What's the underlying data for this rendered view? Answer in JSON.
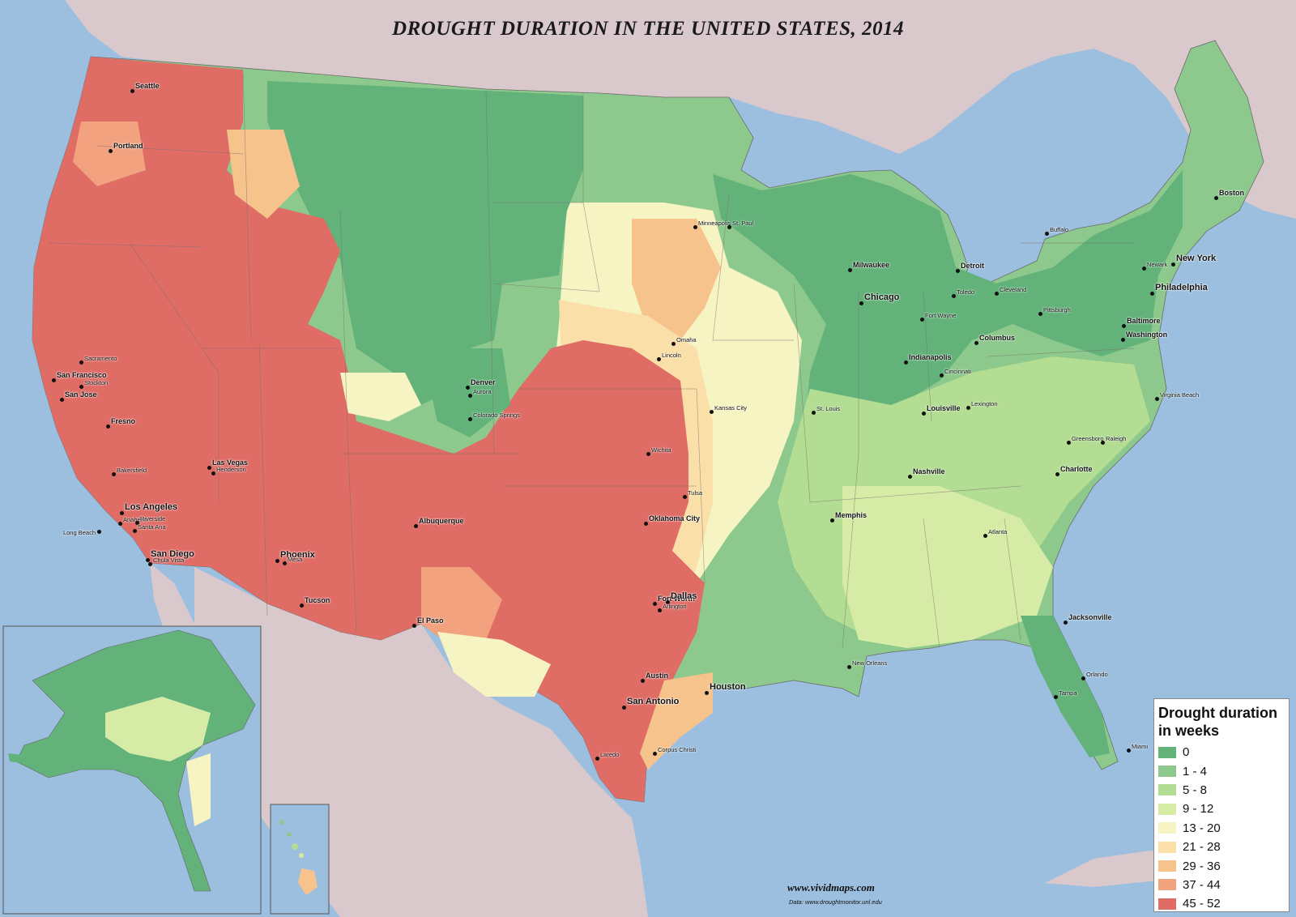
{
  "map": {
    "title": "DROUGHT DURATION IN THE UNITED STATES, 2014",
    "credit": "www.vividmaps.com",
    "data_source": "Data: www.droughtmonitor.unl.edu"
  },
  "colors": {
    "ocean": "#9cbfdf",
    "land_foreign": "#d9c9cc",
    "c0": "#62b27a",
    "c1": "#8dc98c",
    "c2": "#b3dd92",
    "c3": "#d6eca6",
    "c4": "#f7f4c4",
    "c5": "#fae0a8",
    "c6": "#f7c38d",
    "c7": "#f2a27e",
    "c8": "#e06c66"
  },
  "legend": {
    "title": "Drought duration in weeks",
    "items": [
      {
        "label": "0",
        "color": "#62b27a"
      },
      {
        "label": "1 - 4",
        "color": "#8dc98c"
      },
      {
        "label": "5 - 8",
        "color": "#b3dd92"
      },
      {
        "label": "9 - 12",
        "color": "#d6eca6"
      },
      {
        "label": "13 - 20",
        "color": "#f7f4c4"
      },
      {
        "label": "21 - 28",
        "color": "#fae0a8"
      },
      {
        "label": "29 - 36",
        "color": "#f7c38d"
      },
      {
        "label": "37 - 44",
        "color": "#f2a27e"
      },
      {
        "label": "45 - 52",
        "color": "#e06c66"
      }
    ]
  },
  "cities": [
    {
      "name": "Seattle",
      "level": 2
    },
    {
      "name": "Portland",
      "level": 2
    },
    {
      "name": "Sacramento",
      "level": 3
    },
    {
      "name": "San Francisco",
      "level": 2
    },
    {
      "name": "Stockton",
      "level": 3
    },
    {
      "name": "San Jose",
      "level": 2
    },
    {
      "name": "Fresno",
      "level": 2
    },
    {
      "name": "Bakersfield",
      "level": 3
    },
    {
      "name": "Las Vegas",
      "level": 2
    },
    {
      "name": "Henderson",
      "level": 3
    },
    {
      "name": "Los Angeles",
      "level": 1
    },
    {
      "name": "Anaheim",
      "level": 3
    },
    {
      "name": "Riverside",
      "level": 3
    },
    {
      "name": "Long Beach",
      "level": 3
    },
    {
      "name": "Santa Ana",
      "level": 3
    },
    {
      "name": "San Diego",
      "level": 1
    },
    {
      "name": "Chula Vista",
      "level": 3
    },
    {
      "name": "Phoenix",
      "level": 1
    },
    {
      "name": "Mesa",
      "level": 3
    },
    {
      "name": "Tucson",
      "level": 2
    },
    {
      "name": "Albuquerque",
      "level": 2
    },
    {
      "name": "El Paso",
      "level": 2
    },
    {
      "name": "Denver",
      "level": 2
    },
    {
      "name": "Aurora",
      "level": 3
    },
    {
      "name": "Colorado Springs",
      "level": 3
    },
    {
      "name": "Wichita",
      "level": 3
    },
    {
      "name": "Tulsa",
      "level": 3
    },
    {
      "name": "Oklahoma City",
      "level": 2
    },
    {
      "name": "Fort Worth",
      "level": 2
    },
    {
      "name": "Dallas",
      "level": 1
    },
    {
      "name": "Arlington",
      "level": 3
    },
    {
      "name": "Austin",
      "level": 2
    },
    {
      "name": "San Antonio",
      "level": 1
    },
    {
      "name": "Houston",
      "level": 1
    },
    {
      "name": "Corpus Christi",
      "level": 3
    },
    {
      "name": "Laredo",
      "level": 3
    },
    {
      "name": "Minneapolis",
      "level": 3
    },
    {
      "name": "St. Paul",
      "level": 3
    },
    {
      "name": "Omaha",
      "level": 3
    },
    {
      "name": "Lincoln",
      "level": 3
    },
    {
      "name": "Kansas City",
      "level": 3
    },
    {
      "name": "St. Louis",
      "level": 3
    },
    {
      "name": "Milwaukee",
      "level": 2
    },
    {
      "name": "Chicago",
      "level": 1
    },
    {
      "name": "Detroit",
      "level": 2
    },
    {
      "name": "Toledo",
      "level": 3
    },
    {
      "name": "Fort Wayne",
      "level": 3
    },
    {
      "name": "Cleveland",
      "level": 3
    },
    {
      "name": "Columbus",
      "level": 2
    },
    {
      "name": "Indianapolis",
      "level": 2
    },
    {
      "name": "Cincinnati",
      "level": 3
    },
    {
      "name": "Louisville",
      "level": 2
    },
    {
      "name": "Lexington",
      "level": 3
    },
    {
      "name": "Nashville",
      "level": 2
    },
    {
      "name": "Memphis",
      "level": 2
    },
    {
      "name": "New Orleans",
      "level": 3
    },
    {
      "name": "Atlanta",
      "level": 3
    },
    {
      "name": "Charlotte",
      "level": 2
    },
    {
      "name": "Greensboro",
      "level": 3
    },
    {
      "name": "Raleigh",
      "level": 3
    },
    {
      "name": "Virginia Beach",
      "level": 3
    },
    {
      "name": "Pittsburgh",
      "level": 3
    },
    {
      "name": "Buffalo",
      "level": 3
    },
    {
      "name": "Washington",
      "level": 2
    },
    {
      "name": "Baltimore",
      "level": 2
    },
    {
      "name": "Philadelphia",
      "level": 1
    },
    {
      "name": "Newark",
      "level": 3
    },
    {
      "name": "New York",
      "level": 1
    },
    {
      "name": "Boston",
      "level": 2
    },
    {
      "name": "Jacksonville",
      "level": 2
    },
    {
      "name": "Orlando",
      "level": 3
    },
    {
      "name": "Tampa",
      "level": 3
    },
    {
      "name": "Miami",
      "level": 3
    }
  ]
}
